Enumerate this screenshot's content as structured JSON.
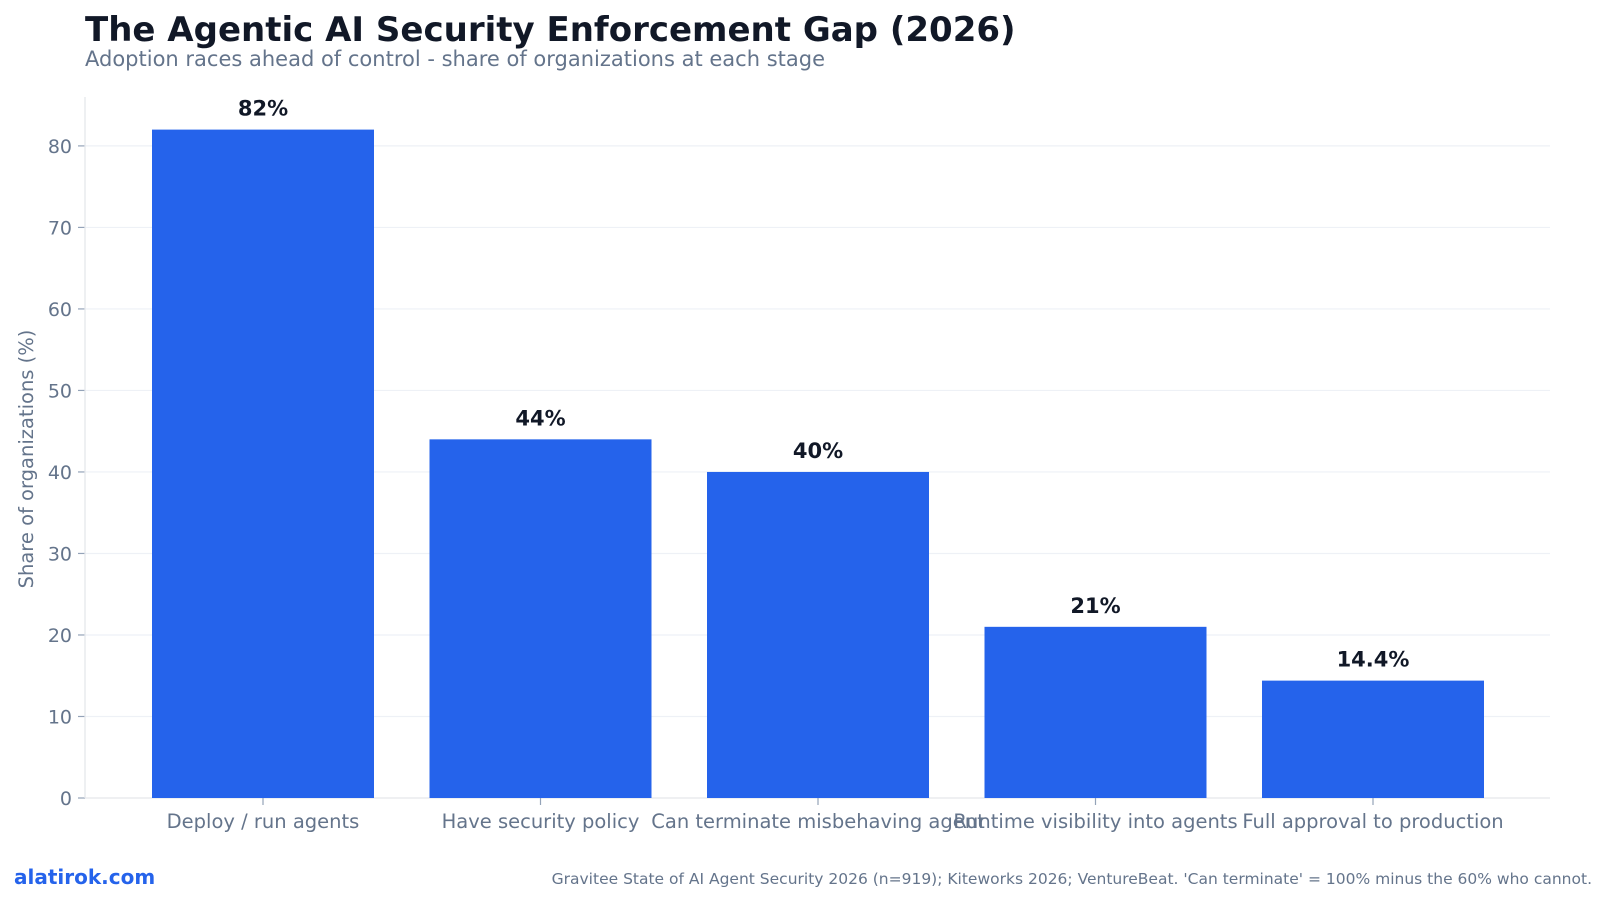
{
  "chart_data": {
    "type": "bar",
    "title": "The Agentic AI Security Enforcement Gap (2026)",
    "subtitle": "Adoption races ahead of control - share of organizations at each stage",
    "categories": [
      "Deploy / run agents",
      "Have security policy",
      "Can terminate misbehaving agent",
      "Runtime visibility into agents",
      "Full approval to production"
    ],
    "values": [
      82,
      44,
      40,
      21,
      14.4
    ],
    "data_labels": [
      "82%",
      "44%",
      "40%",
      "21%",
      "14.4%"
    ],
    "xlabel": "",
    "ylabel": "Share of organizations (%)",
    "ylim": [
      0,
      86
    ],
    "yticks": [
      0,
      10,
      20,
      30,
      40,
      50,
      60,
      70,
      80
    ],
    "grid": true,
    "bar_color": "#2563eb"
  },
  "footer": {
    "brand": "alatirok.com",
    "source": "Gravitee State of AI Agent Security 2026 (n=919); Kiteworks 2026; VentureBeat. 'Can terminate' = 100% minus the 60% who cannot."
  }
}
